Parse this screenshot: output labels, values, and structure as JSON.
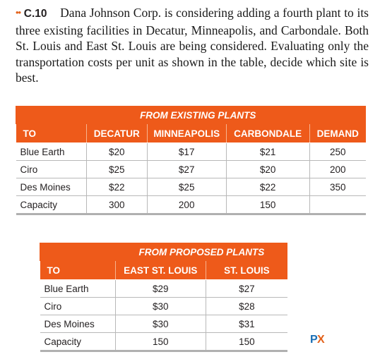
{
  "problem": {
    "dots": "••",
    "number": "C.10",
    "text": "Dana Johnson Corp. is considering adding a fourth plant to its three existing facilities in Decatur, Minneapolis, and Carbondale. Both St. Louis and East St. Louis are being considered. Evaluating only the transportation costs per unit as shown in the table, decide which site is best."
  },
  "existing_table": {
    "group_header": "FROM EXISTING PLANTS",
    "headers": [
      "TO",
      "DECATUR",
      "MINNEAPOLIS",
      "CARBONDALE",
      "DEMAND"
    ],
    "rows": [
      [
        "Blue Earth",
        "$20",
        "$17",
        "$21",
        "250"
      ],
      [
        "Ciro",
        "$25",
        "$27",
        "$20",
        "200"
      ],
      [
        "Des Moines",
        "$22",
        "$25",
        "$22",
        "350"
      ],
      [
        "Capacity",
        "300",
        "200",
        "150",
        ""
      ]
    ]
  },
  "proposed_table": {
    "group_header": "FROM PROPOSED PLANTS",
    "headers": [
      "TO",
      "EAST ST. LOUIS",
      "ST. LOUIS"
    ],
    "rows": [
      [
        "Blue Earth",
        "$29",
        "$27"
      ],
      [
        "Ciro",
        "$30",
        "$28"
      ],
      [
        "Des Moines",
        "$30",
        "$31"
      ],
      [
        "Capacity",
        "150",
        "150"
      ]
    ]
  },
  "logo": {
    "icon": "px-logo-icon",
    "text": "PX",
    "colors": {
      "p": "#1a6fb5",
      "x": "#e3621b"
    }
  }
}
